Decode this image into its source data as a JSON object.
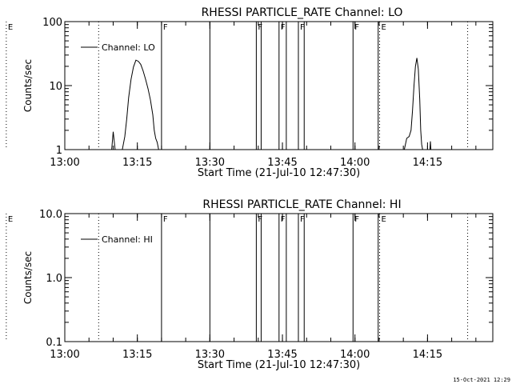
{
  "footer": {
    "stamp": "15-Oct-2021 12:29"
  },
  "chart_data": [
    {
      "type": "line",
      "title": "RHESSI PARTICLE_RATE Channel: LO",
      "xlabel": "Start Time (21-Jul-10 12:47:30)",
      "ylabel": "Counts/sec",
      "yscale": "log",
      "ylim": [
        1,
        100
      ],
      "xlim_minutes": [
        12.5,
        101.0
      ],
      "xticks": [
        {
          "min": 12.5,
          "label": "13:00"
        },
        {
          "min": 27.5,
          "label": "13:15"
        },
        {
          "min": 42.5,
          "label": "13:30"
        },
        {
          "min": 57.5,
          "label": "13:45"
        },
        {
          "min": 72.5,
          "label": "14:00"
        },
        {
          "min": 87.5,
          "label": "14:15"
        }
      ],
      "yticks": [
        {
          "v": 1,
          "label": "1"
        },
        {
          "v": 10,
          "label": "10"
        },
        {
          "v": 100,
          "label": "100"
        }
      ],
      "legend": {
        "label": "Channel: LO",
        "position": "top-left"
      },
      "series": [
        {
          "name": "Channel: LO",
          "points": [
            [
              22.2,
              1.0
            ],
            [
              22.5,
              1.9
            ],
            [
              22.9,
              1.0
            ],
            [
              24.4,
              1.0
            ],
            [
              24.9,
              1.6
            ],
            [
              25.3,
              3.0
            ],
            [
              25.7,
              6.5
            ],
            [
              26.2,
              12.5
            ],
            [
              26.7,
              19.5
            ],
            [
              27.2,
              25.0
            ],
            [
              27.7,
              24.0
            ],
            [
              28.2,
              21.5
            ],
            [
              28.7,
              17.0
            ],
            [
              29.2,
              12.5
            ],
            [
              29.7,
              9.0
            ],
            [
              30.2,
              6.0
            ],
            [
              30.7,
              3.5
            ],
            [
              31.0,
              2.0
            ],
            [
              31.3,
              1.5
            ],
            [
              31.6,
              1.3
            ],
            [
              31.9,
              1.0
            ]
          ]
        },
        {
          "name": "Channel: LO",
          "points": [
            [
              82.7,
              1.0
            ],
            [
              83.2,
              1.5
            ],
            [
              83.7,
              1.6
            ],
            [
              84.1,
              2.0
            ],
            [
              84.4,
              4.0
            ],
            [
              84.7,
              10.0
            ],
            [
              85.0,
              20.0
            ],
            [
              85.3,
              27.0
            ],
            [
              85.6,
              18.0
            ],
            [
              85.9,
              6.0
            ],
            [
              86.1,
              2.0
            ],
            [
              86.3,
              1.2
            ],
            [
              86.5,
              1.0
            ]
          ]
        },
        {
          "name": "Channel: LO",
          "points": [
            [
              88.0,
              1.0
            ],
            [
              88.1,
              1.35
            ],
            [
              88.2,
              1.0
            ]
          ]
        }
      ],
      "markers": [
        {
          "t": 0.4,
          "label": "E",
          "style": "dotted"
        },
        {
          "t": 19.5,
          "label": "",
          "style": "dotted"
        },
        {
          "t": 32.5,
          "label": "F",
          "style": "solid"
        },
        {
          "t": 42.5,
          "label": "",
          "style": "solid"
        },
        {
          "t": 52.1,
          "label": "F",
          "style": "solid"
        },
        {
          "t": 53.1,
          "label": "",
          "style": "solid"
        },
        {
          "t": 56.8,
          "label": "F",
          "style": "solid"
        },
        {
          "t": 58.3,
          "label": "",
          "style": "solid"
        },
        {
          "t": 60.8,
          "label": "F",
          "style": "solid"
        },
        {
          "t": 62.0,
          "label": "",
          "style": "solid"
        },
        {
          "t": 72.1,
          "label": "F",
          "style": "solid"
        },
        {
          "t": 77.3,
          "label": "",
          "style": "solid"
        },
        {
          "t": 77.6,
          "label": "E",
          "style": "dotted"
        },
        {
          "t": 95.8,
          "label": "",
          "style": "dotted"
        }
      ]
    },
    {
      "type": "line",
      "title": "RHESSI PARTICLE_RATE Channel: HI",
      "xlabel": "Start Time (21-Jul-10 12:47:30)",
      "ylabel": "Counts/sec",
      "yscale": "log",
      "ylim": [
        0.1,
        10
      ],
      "xlim_minutes": [
        12.5,
        101.0
      ],
      "xticks": [
        {
          "min": 12.5,
          "label": "13:00"
        },
        {
          "min": 27.5,
          "label": "13:15"
        },
        {
          "min": 42.5,
          "label": "13:30"
        },
        {
          "min": 57.5,
          "label": "13:45"
        },
        {
          "min": 72.5,
          "label": "14:00"
        },
        {
          "min": 87.5,
          "label": "14:15"
        }
      ],
      "yticks": [
        {
          "v": 0.1,
          "label": "0.1"
        },
        {
          "v": 1,
          "label": "1.0"
        },
        {
          "v": 10,
          "label": "10.0"
        }
      ],
      "legend": {
        "label": "Channel: HI",
        "position": "top-left"
      },
      "series": [],
      "markers": [
        {
          "t": 0.4,
          "label": "E",
          "style": "dotted"
        },
        {
          "t": 19.5,
          "label": "",
          "style": "dotted"
        },
        {
          "t": 32.5,
          "label": "F",
          "style": "solid"
        },
        {
          "t": 42.5,
          "label": "",
          "style": "solid"
        },
        {
          "t": 52.1,
          "label": "F",
          "style": "solid"
        },
        {
          "t": 53.1,
          "label": "",
          "style": "solid"
        },
        {
          "t": 56.8,
          "label": "F",
          "style": "solid"
        },
        {
          "t": 58.3,
          "label": "",
          "style": "solid"
        },
        {
          "t": 60.8,
          "label": "F",
          "style": "solid"
        },
        {
          "t": 62.0,
          "label": "",
          "style": "solid"
        },
        {
          "t": 72.1,
          "label": "F",
          "style": "solid"
        },
        {
          "t": 77.3,
          "label": "",
          "style": "solid"
        },
        {
          "t": 77.6,
          "label": "E",
          "style": "dotted"
        },
        {
          "t": 95.8,
          "label": "",
          "style": "dotted"
        }
      ]
    }
  ]
}
